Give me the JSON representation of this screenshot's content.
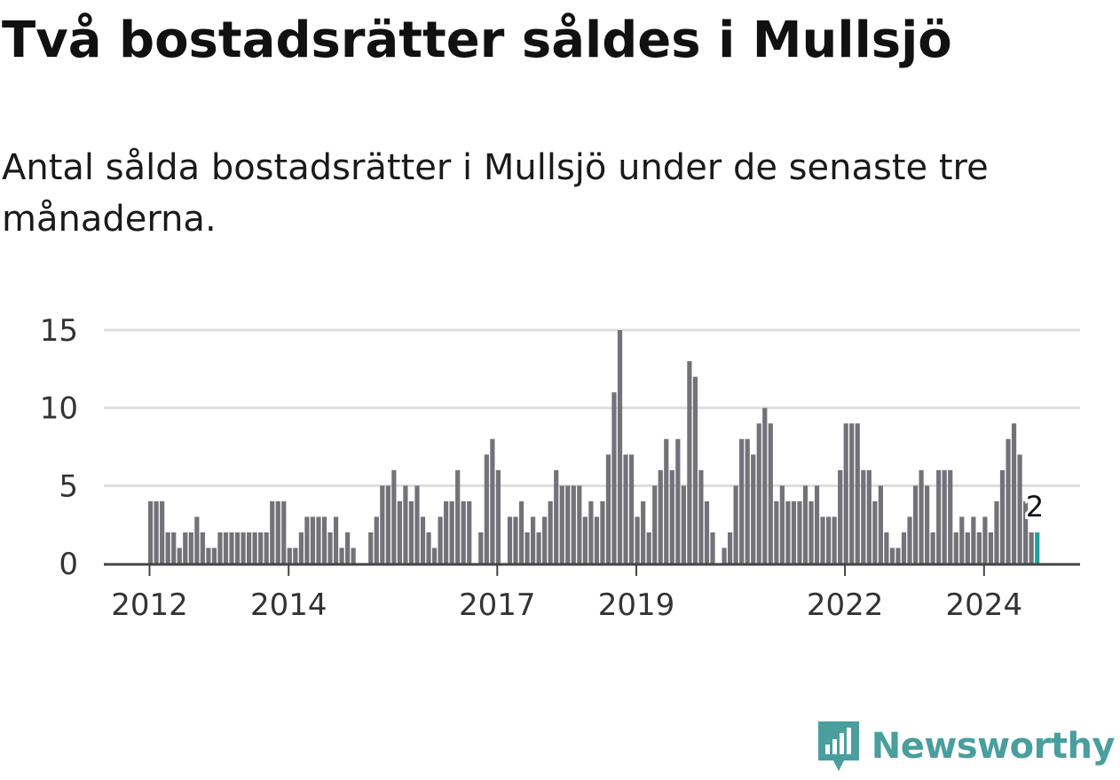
{
  "title": "Två bostadsrätter såldes i Mullsjö",
  "subtitle": "Antal sålda bostadsrätter i Mullsjö under de senaste tre månaderna.",
  "brand": {
    "name": "Newsworthy",
    "icon": "newsworthy-logo-icon",
    "color": "#4a9e9e"
  },
  "chart_data": {
    "type": "bar",
    "start": "2012-01",
    "frequency": "monthly",
    "values": [
      4,
      4,
      4,
      2,
      2,
      1,
      2,
      2,
      3,
      2,
      1,
      1,
      2,
      2,
      2,
      2,
      2,
      2,
      2,
      2,
      2,
      4,
      4,
      4,
      1,
      1,
      2,
      3,
      3,
      3,
      3,
      2,
      3,
      1,
      2,
      1,
      0,
      0,
      2,
      3,
      5,
      5,
      6,
      4,
      5,
      4,
      5,
      3,
      2,
      1,
      3,
      4,
      4,
      6,
      4,
      4,
      0,
      2,
      7,
      8,
      6,
      0,
      3,
      3,
      4,
      2,
      3,
      2,
      3,
      4,
      6,
      5,
      5,
      5,
      5,
      3,
      4,
      3,
      4,
      7,
      11,
      15,
      7,
      7,
      3,
      4,
      2,
      5,
      6,
      8,
      6,
      8,
      5,
      13,
      12,
      6,
      4,
      2,
      0,
      1,
      2,
      5,
      8,
      8,
      7,
      9,
      10,
      9,
      4,
      5,
      4,
      4,
      4,
      5,
      4,
      5,
      3,
      3,
      3,
      6,
      9,
      9,
      9,
      6,
      6,
      4,
      5,
      2,
      1,
      1,
      2,
      3,
      5,
      6,
      5,
      2,
      6,
      6,
      6,
      2,
      3,
      2,
      3,
      2,
      3,
      2,
      4,
      6,
      8,
      9,
      7,
      4,
      2,
      2
    ],
    "highlight_last": true,
    "highlight_label": "2",
    "colors": {
      "bar": "#737278",
      "highlight": "#20a39e",
      "grid": "#dddddd",
      "axis": "#444444"
    },
    "yticks": [
      0,
      5,
      10,
      15
    ],
    "ylim": [
      0,
      15
    ],
    "xticks": [
      "2012",
      "2014",
      "2017",
      "2019",
      "2022",
      "2024"
    ],
    "grid": true
  }
}
